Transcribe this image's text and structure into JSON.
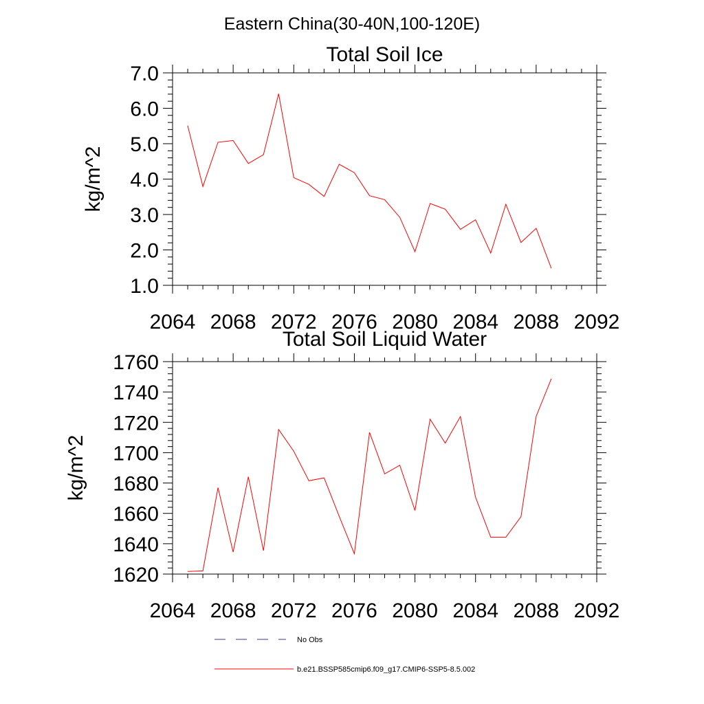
{
  "figure": {
    "title": "Eastern China(30-40N,100-120E)"
  },
  "chart_data": [
    {
      "type": "line",
      "title": "Total Soil Ice",
      "xlabel": "",
      "ylabel": "kg/m^2",
      "xlim": [
        2064,
        2092
      ],
      "ylim": [
        1.0,
        7.0
      ],
      "xticks": [
        2064,
        2068,
        2072,
        2076,
        2080,
        2084,
        2088,
        2092
      ],
      "xtick_labels": [
        "2064",
        "2068",
        "2072",
        "2076",
        "2080",
        "2084",
        "2088",
        "2092"
      ],
      "yticks": [
        1.0,
        2.0,
        3.0,
        4.0,
        5.0,
        6.0,
        7.0
      ],
      "ytick_labels": [
        "1.0",
        "2.0",
        "3.0",
        "4.0",
        "5.0",
        "6.0",
        "7.0"
      ],
      "grid": false,
      "series": [
        {
          "name": "b.e21.BSSP585cmip6.f09_g17.CMIP6-SSP5-8.5.002",
          "color": "#ff0000",
          "x": [
            2065,
            2066,
            2067,
            2068,
            2069,
            2070,
            2071,
            2072,
            2073,
            2074,
            2075,
            2076,
            2077,
            2078,
            2079,
            2080,
            2081,
            2082,
            2083,
            2084,
            2085,
            2086,
            2087,
            2088,
            2089
          ],
          "y": [
            5.51,
            3.79,
            5.04,
            5.09,
            4.44,
            4.69,
            6.41,
            4.04,
            3.85,
            3.51,
            4.42,
            4.18,
            3.53,
            3.42,
            2.92,
            1.95,
            3.31,
            3.15,
            2.58,
            2.85,
            1.91,
            3.29,
            2.21,
            2.61,
            1.48
          ]
        }
      ]
    },
    {
      "type": "line",
      "title": "Total Soil Liquid Water",
      "xlabel": "",
      "ylabel": "kg/m^2",
      "xlim": [
        2064,
        2092
      ],
      "ylim": [
        1620,
        1760
      ],
      "xticks": [
        2064,
        2068,
        2072,
        2076,
        2080,
        2084,
        2088,
        2092
      ],
      "xtick_labels": [
        "2064",
        "2068",
        "2072",
        "2076",
        "2080",
        "2084",
        "2088",
        "2092"
      ],
      "yticks": [
        1620,
        1640,
        1660,
        1680,
        1700,
        1720,
        1740,
        1760
      ],
      "ytick_labels": [
        "1620",
        "1640",
        "1660",
        "1680",
        "1700",
        "1720",
        "1740",
        "1760"
      ],
      "grid": false,
      "series": [
        {
          "name": "b.e21.BSSP585cmip6.f09_g17.CMIP6-SSP5-8.5.002",
          "color": "#ff0000",
          "x": [
            2065,
            2066,
            2067,
            2068,
            2069,
            2070,
            2071,
            2072,
            2073,
            2074,
            2075,
            2076,
            2077,
            2078,
            2079,
            2080,
            2081,
            2082,
            2083,
            2084,
            2085,
            2086,
            2087,
            2088,
            2089
          ],
          "y": [
            1621.7,
            1622.1,
            1676.9,
            1634.5,
            1684.1,
            1635.4,
            1715.3,
            1700.9,
            1681.5,
            1683.4,
            1658.0,
            1633.4,
            1713.4,
            1686.0,
            1691.7,
            1661.9,
            1722.1,
            1706.3,
            1723.8,
            1670.6,
            1644.3,
            1644.3,
            1657.8,
            1724.0,
            1748.7
          ]
        }
      ]
    }
  ],
  "legend": {
    "placement": "bottom",
    "entries": [
      {
        "label": "No Obs",
        "color": "#3a3a8c",
        "dash": "dashed"
      },
      {
        "label": "b.e21.BSSP585cmip6.f09_g17.CMIP6-SSP5-8.5.002",
        "color": "#ff0000",
        "dash": "solid"
      }
    ]
  }
}
